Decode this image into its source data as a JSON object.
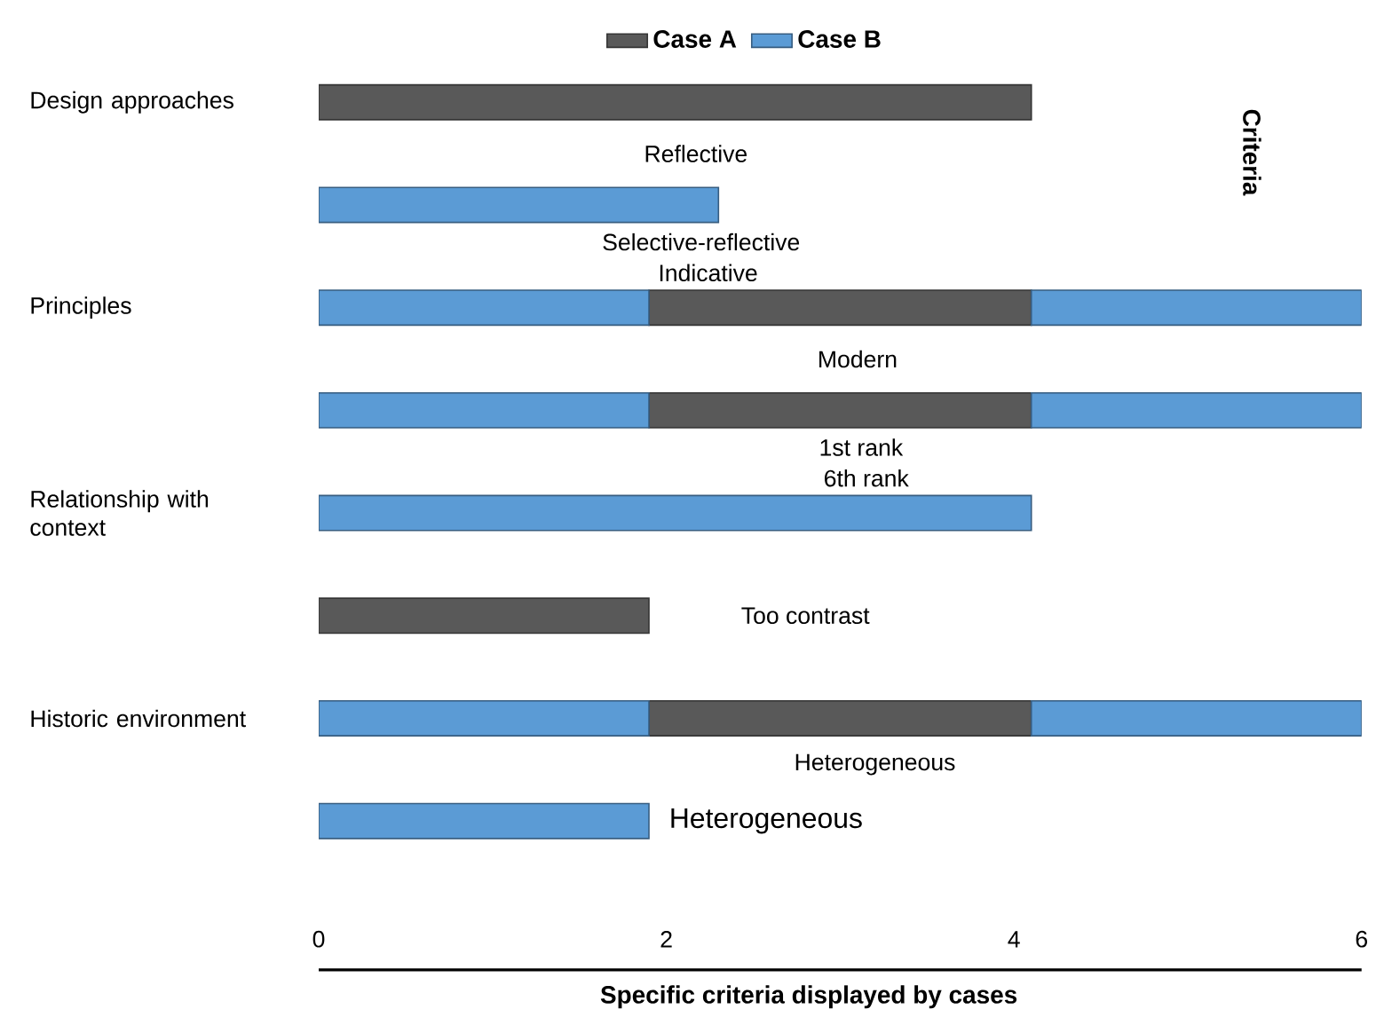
{
  "chart_data": {
    "type": "bar",
    "orientation": "horizontal",
    "xlabel": "Specific criteria displayed by cases",
    "ylabel": "Criteria",
    "legend": "top",
    "categories": [
      "Design approaches",
      null,
      "Principles",
      null,
      "Relationship with context",
      null,
      "Historic environment",
      null
    ],
    "series": [
      {
        "name": "Case A",
        "color": "#595959",
        "values": [
          4.1,
          null,
          2.2,
          2.2,
          null,
          1.9,
          2.2,
          null
        ],
        "base": [
          0,
          null,
          1.9,
          1.9,
          null,
          0,
          1.9,
          null
        ]
      },
      {
        "name": "Case B",
        "color": "#5b9bd5",
        "values": [
          null,
          2.3,
          1.9,
          1.9,
          4.1,
          null,
          1.9,
          1.9
        ],
        "base": [
          null,
          0,
          0,
          0,
          0,
          null,
          0,
          0
        ]
      },
      {
        "color": "#5b9bd5",
        "values": [
          null,
          null,
          1.9,
          1.9,
          null,
          null,
          1.9,
          null
        ],
        "base": [
          null,
          null,
          4.1,
          4.1,
          null,
          null,
          4.1,
          null
        ]
      }
    ],
    "xlim": [
      0,
      6
    ],
    "xticks": [
      0,
      2,
      4,
      6
    ],
    "annotations": [
      "Reflective",
      "Selective-reflective",
      "Indicative",
      "Modern",
      "1st rank",
      "6th rank",
      "Too contrast",
      "Heterogeneous",
      "Heterogeneous"
    ]
  }
}
